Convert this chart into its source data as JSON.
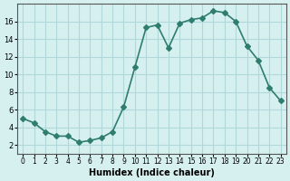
{
  "x": [
    0,
    1,
    2,
    3,
    4,
    5,
    6,
    7,
    8,
    9,
    10,
    11,
    12,
    13,
    14,
    15,
    16,
    17,
    18,
    19,
    20,
    21,
    22,
    23
  ],
  "y": [
    5.0,
    4.5,
    3.5,
    3.0,
    3.0,
    2.3,
    2.5,
    2.8,
    3.5,
    6.3,
    10.8,
    15.3,
    15.6,
    13.0,
    15.8,
    16.2,
    16.4,
    17.2,
    17.0,
    16.0,
    13.2,
    11.6,
    8.5,
    7.0
  ],
  "xlabel": "Humidex (Indice chaleur)",
  "line_color": "#2e7d6e",
  "marker": "D",
  "marker_size": 3,
  "bg_color": "#d6f0f0",
  "grid_color": "#b0d8d8",
  "xlim": [
    -0.5,
    23.5
  ],
  "ylim": [
    1,
    18
  ],
  "yticks": [
    2,
    4,
    6,
    8,
    10,
    12,
    14,
    16
  ],
  "xticks": [
    0,
    1,
    2,
    3,
    4,
    5,
    6,
    7,
    8,
    9,
    10,
    11,
    12,
    13,
    14,
    15,
    16,
    17,
    18,
    19,
    20,
    21,
    22,
    23
  ]
}
